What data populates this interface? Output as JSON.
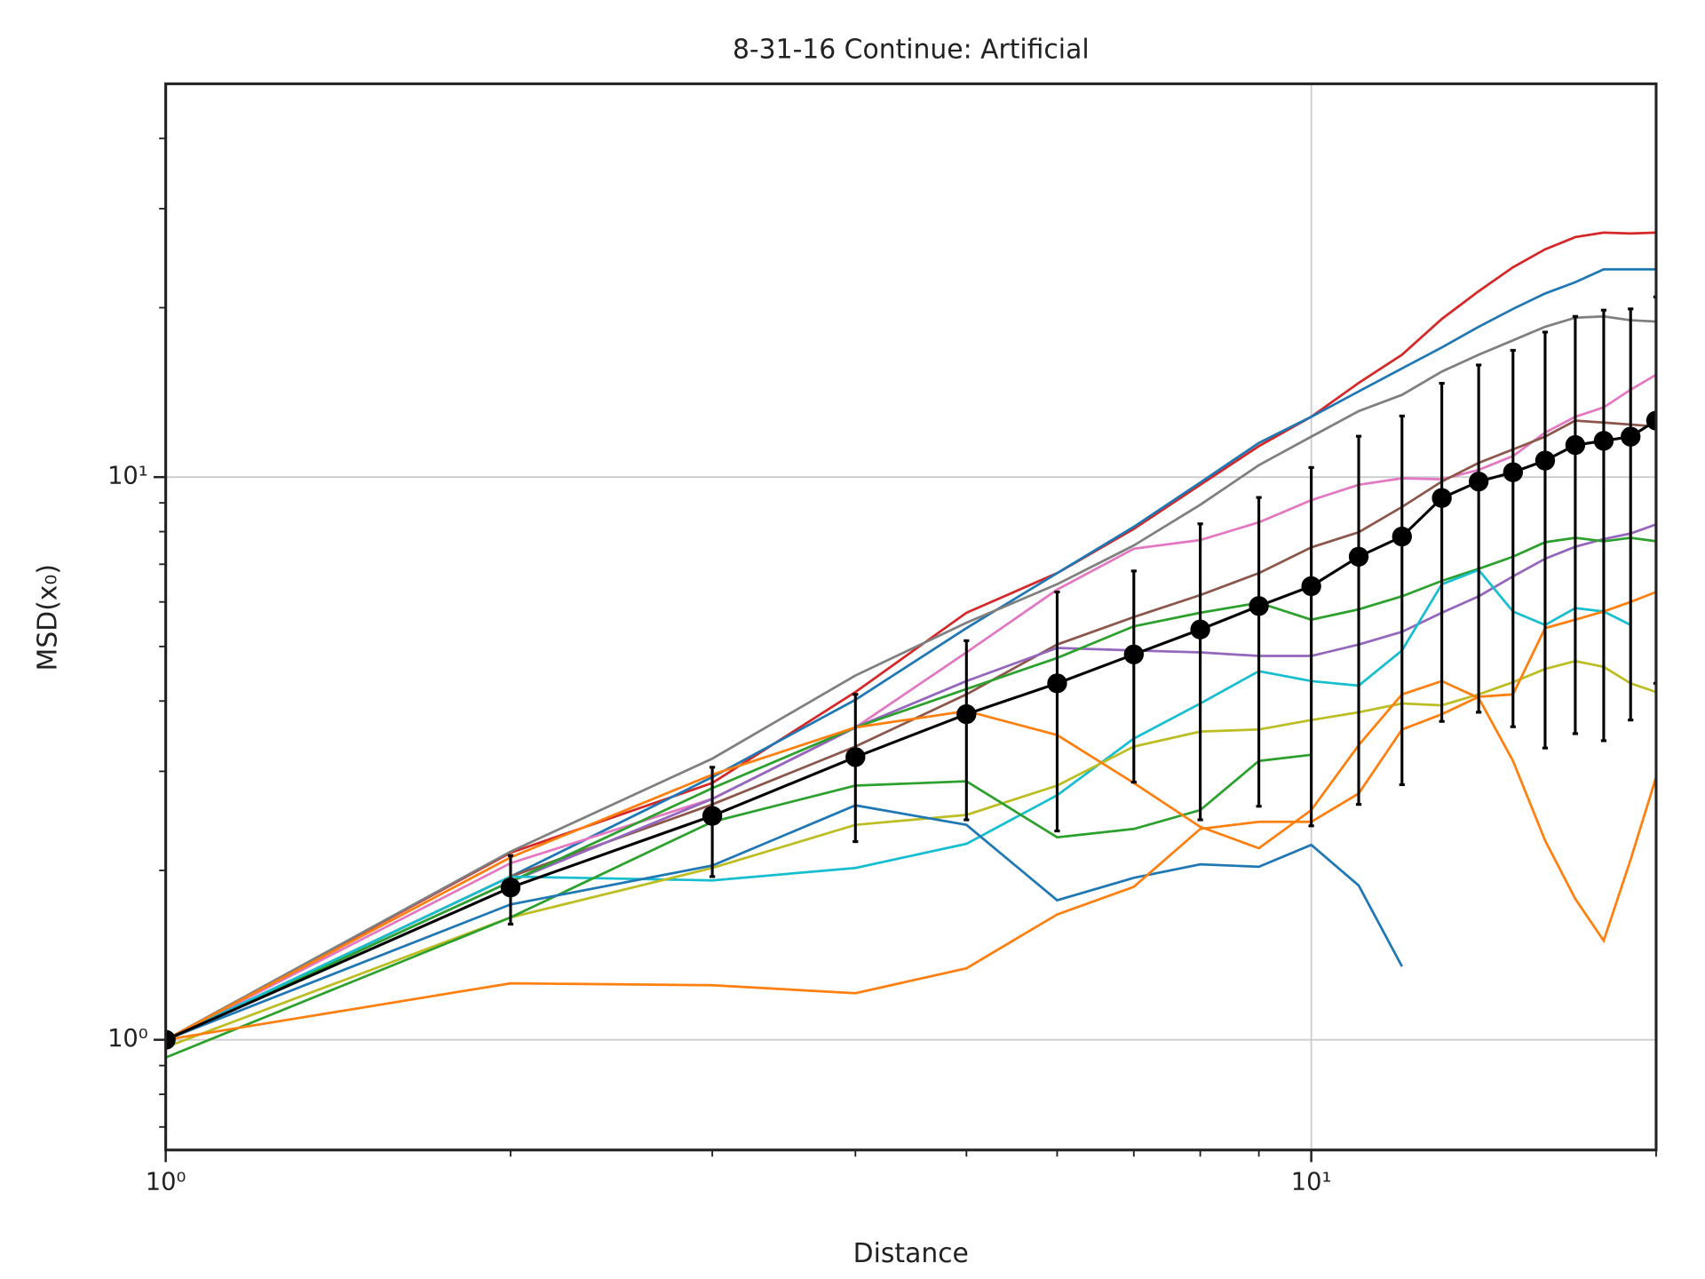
{
  "chart_data": {
    "type": "line",
    "title": "8-31-16 Continue: Artificial",
    "xlabel": "Distance",
    "ylabel": "MSD(x₀)",
    "xscale": "log",
    "yscale": "log",
    "grid": true,
    "x": [
      1,
      2,
      3,
      4,
      5,
      6,
      7,
      8,
      9,
      10,
      11,
      12,
      13,
      14,
      15,
      16,
      17,
      18,
      19,
      20
    ],
    "xlim": [
      1,
      20
    ],
    "ylim": [
      0.637,
      50
    ],
    "xticks": [
      {
        "value": 1,
        "label": "10⁰"
      },
      {
        "value": 10,
        "label": "10¹"
      }
    ],
    "yticks": [
      {
        "value": 1,
        "label": "10⁰"
      },
      {
        "value": 10,
        "label": "10¹"
      }
    ],
    "xminorticks": [
      2,
      3,
      4,
      5,
      6,
      7,
      8,
      9,
      20
    ],
    "yminorticks": [
      0.7,
      0.8,
      0.9,
      2,
      3,
      4,
      5,
      6,
      7,
      8,
      9,
      20,
      30,
      40
    ],
    "series": [
      {
        "color": "#d62728",
        "values": [
          1,
          2.15,
          2.86,
          4.15,
          5.74,
          6.75,
          8.09,
          9.69,
          11.35,
          12.8,
          14.7,
          16.5,
          19.1,
          21.4,
          23.6,
          25.4,
          26.7,
          27.2,
          27.1,
          27.2
        ]
      },
      {
        "color": "#1f77b4",
        "values": [
          1,
          1.95,
          2.93,
          4.02,
          5.39,
          6.75,
          8.16,
          9.78,
          11.5,
          12.8,
          14.2,
          15.6,
          17.0,
          18.5,
          19.9,
          21.2,
          22.2,
          23.4,
          23.4,
          23.4
        ]
      },
      {
        "color": "#7f7f7f",
        "values": [
          1,
          2.16,
          3.16,
          4.44,
          5.51,
          6.45,
          7.56,
          8.93,
          10.5,
          11.8,
          13.1,
          14.0,
          15.4,
          16.5,
          17.5,
          18.5,
          19.2,
          19.3,
          19.0,
          18.9
        ]
      },
      {
        "color": "#e377c2",
        "values": [
          1,
          2.06,
          2.68,
          3.59,
          4.88,
          6.31,
          7.46,
          7.73,
          8.31,
          9.1,
          9.69,
          9.95,
          9.91,
          10.3,
          10.9,
          12.0,
          12.8,
          13.3,
          14.3,
          15.2
        ]
      },
      {
        "color": "#8c564b",
        "values": [
          1,
          1.95,
          2.62,
          3.32,
          4.11,
          5.04,
          5.64,
          6.17,
          6.75,
          7.5,
          7.98,
          8.85,
          9.82,
          10.6,
          11.2,
          11.8,
          12.6,
          12.5,
          12.4,
          12.3
        ]
      },
      {
        "color": "#9467bd",
        "values": [
          1,
          1.91,
          2.68,
          3.59,
          4.34,
          4.97,
          4.92,
          4.88,
          4.81,
          4.81,
          5.04,
          5.31,
          5.74,
          6.14,
          6.66,
          7.16,
          7.52,
          7.76,
          7.94,
          8.24
        ]
      },
      {
        "color": "#2ca02c",
        "values": [
          1,
          1.91,
          2.8,
          3.59,
          4.2,
          4.77,
          5.43,
          5.74,
          5.98,
          5.58,
          5.82,
          6.14,
          6.54,
          6.87,
          7.22,
          7.66,
          7.8,
          7.69,
          7.8,
          7.69
        ]
      },
      {
        "color": "#17becf",
        "values": [
          1,
          1.95,
          1.92,
          2.02,
          2.23,
          2.72,
          3.43,
          3.96,
          4.52,
          4.34,
          4.26,
          4.92,
          6.45,
          6.84,
          5.77,
          5.46,
          5.85,
          5.77,
          5.46,
          null
        ]
      },
      {
        "color": "#bcbd22",
        "values": [
          0.97,
          1.65,
          2.02,
          2.41,
          2.51,
          2.83,
          3.32,
          3.53,
          3.56,
          3.7,
          3.82,
          3.96,
          3.93,
          4.11,
          4.32,
          4.56,
          4.71,
          4.6,
          4.3,
          4.15
        ]
      },
      {
        "color": "#2ca02c",
        "values": [
          0.93,
          1.65,
          2.44,
          2.83,
          2.88,
          2.29,
          2.37,
          2.56,
          3.13,
          3.21,
          null,
          null,
          null,
          null,
          null,
          null,
          null,
          null,
          null,
          null
        ]
      },
      {
        "color": "#1f77b4",
        "values": [
          1,
          1.74,
          2.04,
          2.61,
          2.41,
          1.77,
          1.94,
          2.05,
          2.03,
          2.22,
          1.88,
          1.35,
          null,
          null,
          null,
          null,
          null,
          null,
          null,
          null
        ]
      },
      {
        "color": "#ff7f0e",
        "values": [
          1,
          2.11,
          2.96,
          3.59,
          3.84,
          3.48,
          2.86,
          2.39,
          2.19,
          2.56,
          3.34,
          4.11,
          4.34,
          4.05,
          3.13,
          2.26,
          1.78,
          1.5,
          2.09,
          2.93
        ]
      },
      {
        "color": "#ff7f0e",
        "values": [
          1,
          1.26,
          1.25,
          1.21,
          1.34,
          1.67,
          1.87,
          2.37,
          2.44,
          2.44,
          2.74,
          3.56,
          3.79,
          4.07,
          4.11,
          5.39,
          5.58,
          5.77,
          6.0,
          6.25
        ]
      },
      {
        "color": "#000000",
        "markers": true,
        "values": [
          1,
          1.865,
          2.5,
          3.18,
          3.79,
          4.3,
          4.84,
          5.36,
          5.9,
          6.4,
          7.22,
          7.84,
          9.18,
          9.82,
          10.2,
          10.7,
          11.4,
          11.6,
          11.8,
          12.6
        ],
        "errors": [
          0,
          0.26,
          0.55,
          0.93,
          1.33,
          1.95,
          1.97,
          2.9,
          3.3,
          4.0,
          4.6,
          5.0,
          5.5,
          6.0,
          6.6,
          7.4,
          7.9,
          8.2,
          8.1,
          8.3
        ]
      }
    ]
  }
}
